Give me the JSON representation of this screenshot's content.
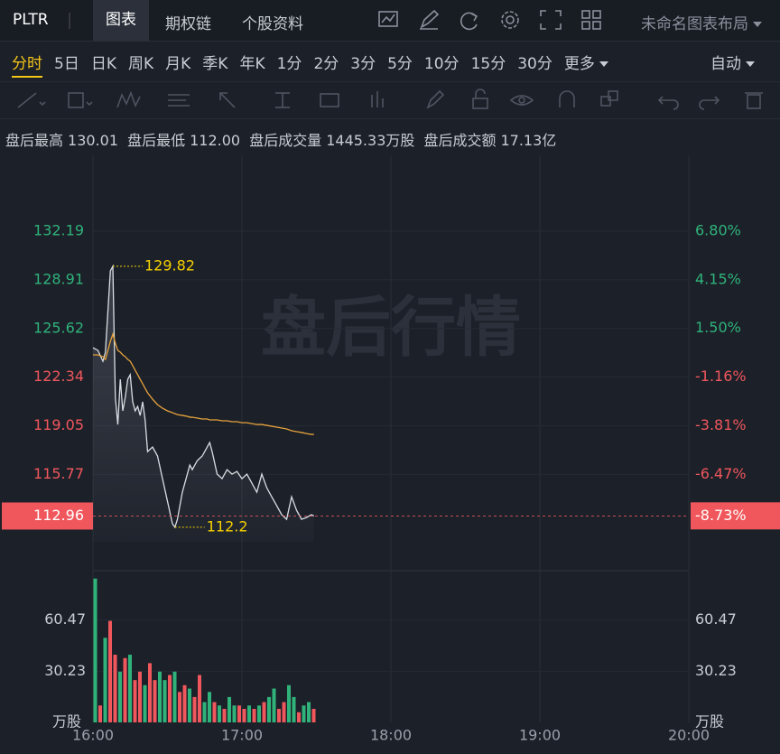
{
  "header": {
    "symbol": "PLTR",
    "tabs": [
      "图表",
      "期权链",
      "个股资料"
    ],
    "layout_name": "未命名图表布局"
  },
  "periods": {
    "items": [
      "分时",
      "5日",
      "日K",
      "周K",
      "月K",
      "季K",
      "年K",
      "1分",
      "2分",
      "3分",
      "5分",
      "10分",
      "15分",
      "30分",
      "更多"
    ],
    "right": "自动"
  },
  "stats": [
    {
      "label": "盘后最高",
      "value": "130.01"
    },
    {
      "label": "盘后最低",
      "value": "112.00"
    },
    {
      "label": "盘后成交量",
      "value": "1445.33万股"
    },
    {
      "label": "盘后成交额",
      "value": "17.13亿"
    }
  ],
  "chart_data": [
    {
      "type": "line",
      "watermark": "盘后行情",
      "x": [
        "16:00",
        "16:02",
        "16:04",
        "16:05",
        "16:07",
        "16:08",
        "16:09",
        "16:10",
        "16:11",
        "16:12",
        "16:13",
        "16:14",
        "16:15",
        "16:16",
        "16:17",
        "16:18",
        "16:19",
        "16:20",
        "16:21",
        "16:22",
        "16:24",
        "16:26",
        "16:28",
        "16:30",
        "16:32",
        "16:33",
        "16:34",
        "16:36",
        "16:38",
        "16:39",
        "16:40",
        "16:42",
        "16:44",
        "16:46",
        "16:47",
        "16:48",
        "16:50",
        "16:52",
        "16:54",
        "16:56",
        "16:58",
        "17:00",
        "17:02",
        "17:04",
        "17:06",
        "17:08",
        "17:10",
        "17:12",
        "17:14",
        "17:16",
        "17:18",
        "17:20",
        "17:22",
        "17:24",
        "17:26",
        "17:28",
        "17:29"
      ],
      "series": [
        {
          "color": "#d9dde3",
          "values": [
            124.32,
            124.14,
            123.41,
            124.02,
            129.51,
            129.82,
            120.97,
            119.14,
            122.19,
            120.06,
            120.97,
            122.19,
            122.5,
            120.67,
            120.06,
            120.36,
            119.75,
            120.67,
            119.45,
            117.31,
            117.62,
            117.01,
            115.48,
            113.96,
            112.44,
            112.2,
            112.74,
            114.57,
            115.79,
            116.4,
            116.09,
            116.7,
            117.01,
            117.62,
            117.92,
            117.31,
            115.79,
            115.48,
            116.09,
            115.79,
            115.97,
            115.48,
            115.79,
            115.18,
            114.57,
            115.79,
            114.87,
            114.26,
            113.66,
            113.05,
            112.74,
            114.26,
            113.35,
            112.74,
            112.86,
            113.05,
            112.96
          ]
        },
        {
          "color": "#e6a23c",
          "values": [
            123.84,
            123.84,
            123.72,
            123.53,
            124.75,
            125.24,
            124.63,
            124.14,
            124.02,
            123.84,
            123.72,
            123.53,
            123.41,
            123.11,
            122.8,
            122.5,
            122.19,
            121.89,
            121.58,
            121.28,
            120.85,
            120.48,
            120.24,
            120.06,
            119.94,
            119.87,
            119.81,
            119.75,
            119.69,
            119.63,
            119.63,
            119.57,
            119.51,
            119.51,
            119.45,
            119.45,
            119.45,
            119.39,
            119.39,
            119.33,
            119.33,
            119.26,
            119.26,
            119.2,
            119.14,
            119.14,
            119.08,
            119.02,
            118.96,
            118.9,
            118.84,
            118.72,
            118.66,
            118.6,
            118.53,
            118.47,
            118.47
          ]
        }
      ],
      "xlim": [
        "16:00",
        "20:00"
      ],
      "xticks": [
        "16:00",
        "17:00",
        "18:00",
        "19:00",
        "20:00"
      ],
      "ylim": [
        109.27,
        137.31
      ],
      "yticks": [
        115.77,
        119.05,
        122.34,
        125.62,
        128.91,
        132.19
      ],
      "y2lim": [
        -11.72,
        10.94
      ],
      "y2ticks": [
        {
          "value": -6.47,
          "label": "-6.47%"
        },
        {
          "value": -3.81,
          "label": "-3.81%"
        },
        {
          "value": -1.16,
          "label": "-1.16%"
        },
        {
          "value": 1.5,
          "label": "1.50%"
        },
        {
          "value": 4.15,
          "label": "4.15%"
        },
        {
          "value": 6.8,
          "label": "6.80%"
        }
      ],
      "current_change": {
        "value": -8.73,
        "label": "-8.73%"
      },
      "up_color": "#2fb37a",
      "down_color": "#f0575c",
      "annotation_color": "#f5d000",
      "grid": true
    },
    {
      "type": "bar",
      "unit": "万股",
      "x": [
        "16:00",
        "16:02",
        "16:04",
        "16:06",
        "16:08",
        "16:10",
        "16:12",
        "16:14",
        "16:16",
        "16:18",
        "16:20",
        "16:22",
        "16:24",
        "16:26",
        "16:28",
        "16:30",
        "16:32",
        "16:34",
        "16:36",
        "16:38",
        "16:40",
        "16:42",
        "16:44",
        "16:46",
        "16:48",
        "16:50",
        "16:52",
        "16:54",
        "16:56",
        "16:58",
        "17:00",
        "17:02",
        "17:04",
        "17:06",
        "17:08",
        "17:10",
        "17:12",
        "17:14",
        "17:16",
        "17:18",
        "17:20",
        "17:22",
        "17:24",
        "17:26",
        "17:28"
      ],
      "values": [
        85,
        10,
        50,
        60,
        40,
        30,
        38,
        40,
        25,
        30,
        22,
        35,
        25,
        30,
        25,
        28,
        30,
        18,
        22,
        20,
        15,
        28,
        12,
        18,
        12,
        10,
        8,
        15,
        10,
        10,
        8,
        10,
        8,
        10,
        12,
        15,
        20,
        8,
        12,
        22,
        15,
        6,
        10,
        12,
        8
      ],
      "colors": [
        "#2fb37a",
        "#f0575c",
        "#2fb37a",
        "#f0575c",
        "#f0575c",
        "#2fb37a",
        "#f0575c",
        "#2fb37a",
        "#f0575c",
        "#f0575c",
        "#2fb37a",
        "#f0575c",
        "#f0575c",
        "#2fb37a",
        "#2fb37a",
        "#f0575c",
        "#2fb37a",
        "#f0575c",
        "#f0575c",
        "#2fb37a",
        "#f0575c",
        "#f0575c",
        "#2fb37a",
        "#2fb37a",
        "#f0575c",
        "#2fb37a",
        "#f0575c",
        "#2fb37a",
        "#2fb37a",
        "#f0575c",
        "#f0575c",
        "#2fb37a",
        "#f0575c",
        "#2fb37a",
        "#f0575c",
        "#2fb37a",
        "#2fb37a",
        "#f0575c",
        "#f0575c",
        "#2fb37a",
        "#2fb37a",
        "#f0575c",
        "#2fb37a",
        "#2fb37a",
        "#f0575c"
      ],
      "xlim": [
        "16:00",
        "20:00"
      ],
      "xticks": [
        "16:00",
        "17:00",
        "18:00",
        "19:00",
        "20:00"
      ],
      "ylim": [
        0,
        89.65
      ],
      "yticks": [
        30.23,
        60.47
      ],
      "grid": true
    }
  ]
}
